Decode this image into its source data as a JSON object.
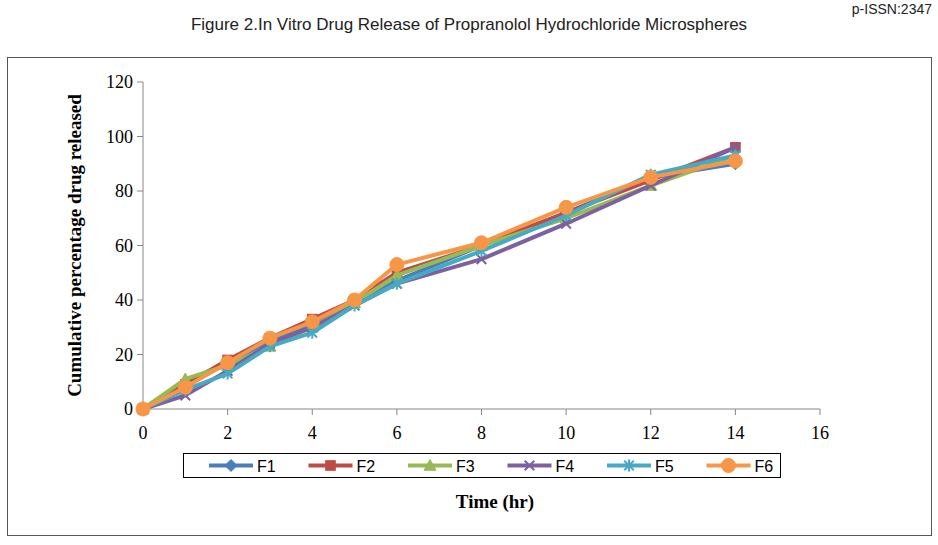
{
  "chart_data": {
    "type": "line",
    "title": "Figure 2.In Vitro Drug Release of Propranolol Hydrochloride Microspheres",
    "annotations": [
      "p-ISSN:2347"
    ],
    "x_label": "Time (hr)",
    "y_label": "Cumulative percentage drug released",
    "x": [
      0,
      1,
      2,
      3,
      4,
      5,
      6,
      8,
      10,
      12,
      14
    ],
    "series": [
      {
        "name": "F1",
        "color": "#4a7ebb",
        "marker": "diamond",
        "values": [
          0,
          10,
          17,
          25,
          31,
          39,
          47,
          60,
          72,
          85,
          90
        ]
      },
      {
        "name": "F2",
        "color": "#be4b48",
        "marker": "square",
        "values": [
          0,
          9,
          18,
          26,
          33,
          40,
          50,
          60,
          72,
          84,
          96
        ]
      },
      {
        "name": "F3",
        "color": "#98b954",
        "marker": "triangle",
        "values": [
          0,
          11,
          16,
          23,
          30,
          39,
          49,
          60,
          70,
          82,
          93
        ]
      },
      {
        "name": "F4",
        "color": "#7d60a0",
        "marker": "x",
        "values": [
          0,
          5,
          14,
          24,
          30,
          38,
          46,
          55,
          68,
          82,
          96
        ]
      },
      {
        "name": "F5",
        "color": "#46aac5",
        "marker": "star",
        "values": [
          0,
          7,
          13,
          23,
          28,
          38,
          46,
          58,
          71,
          86,
          93
        ]
      },
      {
        "name": "F6",
        "color": "#f79646",
        "marker": "circle",
        "values": [
          0,
          8,
          17,
          26,
          32,
          40,
          53,
          61,
          74,
          85,
          91
        ]
      }
    ],
    "xlim": [
      0,
      16
    ],
    "xticks": [
      0,
      2,
      4,
      6,
      8,
      10,
      12,
      14,
      16
    ],
    "ylim": [
      0,
      120
    ],
    "yticks": [
      0,
      20,
      40,
      60,
      80,
      100,
      120
    ],
    "grid": false,
    "legend": "bottom"
  }
}
